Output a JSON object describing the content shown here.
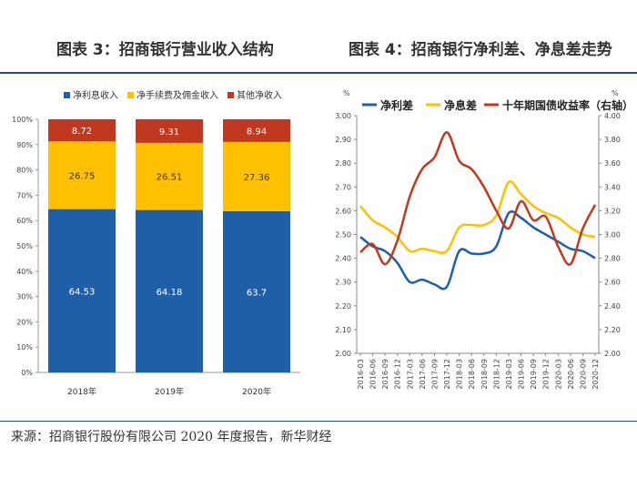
{
  "titles": {
    "left": "图表 3：招商银行营业收入结构",
    "right": "图表 4：招商银行净利差、净息差走势"
  },
  "source": "来源：招商银行股份有限公司 2020 年度报告，新华财经",
  "colors": {
    "blue": "#1f5fa8",
    "yellow": "#ffc000",
    "red": "#c0391e",
    "rule": "#1f4e9c"
  },
  "chart_data": [
    {
      "type": "bar",
      "stacked": true,
      "title": "招商银行营业收入结构",
      "categories": [
        "2018年",
        "2019年",
        "2020年"
      ],
      "series": [
        {
          "name": "净利息收入",
          "color": "#1f5fa8",
          "values": [
            64.53,
            64.18,
            63.7
          ]
        },
        {
          "name": "净手续费及佣金收入",
          "color": "#ffc000",
          "values": [
            26.75,
            26.51,
            27.36
          ]
        },
        {
          "name": "其他净收入",
          "color": "#c0391e",
          "values": [
            8.72,
            9.31,
            8.94
          ]
        }
      ],
      "yticks": [
        "0%",
        "10%",
        "20%",
        "30%",
        "40%",
        "50%",
        "60%",
        "70%",
        "80%",
        "90%",
        "100%"
      ],
      "ylim": [
        0,
        100
      ],
      "legend": "top"
    },
    {
      "type": "line",
      "title": "招商银行净利差、净息差走势",
      "x": [
        "2016-03",
        "2016-06",
        "2016-09",
        "2016-12",
        "2017-03",
        "2017-06",
        "2017-09",
        "2017-12",
        "2018-03",
        "2018-06",
        "2018-09",
        "2018-12",
        "2019-03",
        "2019-06",
        "2019-09",
        "2019-12",
        "2020-03",
        "2020-06",
        "2020-09",
        "2020-12"
      ],
      "left_axis": {
        "unit": "%",
        "ylim": [
          2.0,
          3.0
        ],
        "ticks": [
          "2.00",
          "2.10",
          "2.20",
          "2.30",
          "2.40",
          "2.50",
          "2.60",
          "2.70",
          "2.80",
          "2.90",
          "3.00"
        ]
      },
      "right_axis": {
        "unit": "%",
        "ylim": [
          2.0,
          4.0
        ],
        "ticks": [
          "2.00",
          "2.20",
          "2.40",
          "2.60",
          "2.80",
          "3.00",
          "3.20",
          "3.40",
          "3.60",
          "3.80",
          "4.00"
        ]
      },
      "series": [
        {
          "name": "净利差",
          "axis": "left",
          "color": "#1f5fa8",
          "values": [
            2.49,
            2.45,
            2.43,
            2.38,
            2.3,
            2.31,
            2.29,
            2.28,
            2.43,
            2.42,
            2.42,
            2.45,
            2.59,
            2.57,
            2.53,
            2.5,
            2.47,
            2.44,
            2.43,
            2.4
          ]
        },
        {
          "name": "净息差",
          "axis": "left",
          "color": "#ffc000",
          "values": [
            2.62,
            2.56,
            2.53,
            2.49,
            2.43,
            2.44,
            2.43,
            2.43,
            2.53,
            2.54,
            2.54,
            2.58,
            2.72,
            2.67,
            2.62,
            2.59,
            2.57,
            2.53,
            2.5,
            2.49
          ]
        },
        {
          "name": "十年期国债收益率（右轴）",
          "axis": "right",
          "color": "#c0391e",
          "values": [
            2.85,
            2.92,
            2.75,
            2.95,
            3.32,
            3.55,
            3.65,
            3.86,
            3.62,
            3.55,
            3.4,
            3.2,
            3.05,
            3.28,
            3.12,
            3.15,
            2.9,
            2.75,
            3.05,
            3.25
          ]
        }
      ],
      "legend": "top"
    }
  ]
}
